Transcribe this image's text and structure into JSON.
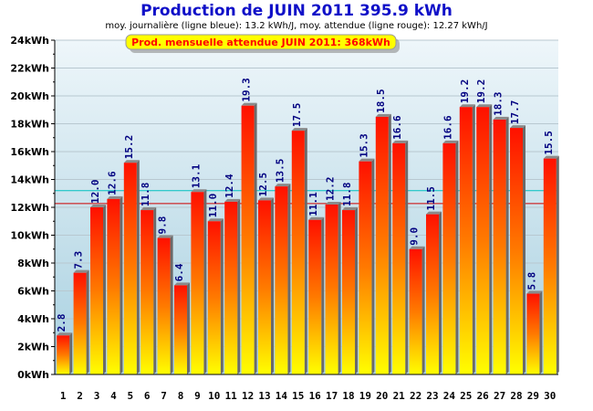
{
  "chart_data": {
    "type": "bar",
    "title": "Production de JUIN 2011  395.9 kWh",
    "subtitle": "moy. journalière (ligne bleue): 13.2 kWh/J,  moy. attendue (ligne rouge): 12.27 kWh/J",
    "annotation": "Prod. mensuelle attendue JUIN 2011: 368kWh",
    "categories": [
      "1",
      "2",
      "3",
      "4",
      "5",
      "6",
      "7",
      "8",
      "9",
      "10",
      "11",
      "12",
      "13",
      "14",
      "15",
      "16",
      "17",
      "18",
      "19",
      "20",
      "21",
      "22",
      "23",
      "24",
      "25",
      "26",
      "27",
      "28",
      "29",
      "30"
    ],
    "values": [
      2.8,
      7.3,
      12.0,
      12.6,
      15.2,
      11.8,
      9.8,
      6.4,
      13.1,
      11.0,
      12.4,
      19.3,
      12.5,
      13.5,
      17.5,
      11.1,
      12.2,
      11.8,
      15.3,
      18.5,
      16.6,
      9.0,
      11.5,
      16.6,
      19.2,
      19.2,
      18.3,
      17.7,
      5.8,
      15.5
    ],
    "value_labels": [
      "2.8",
      "7.3",
      "12.0",
      "12.6",
      "15.2",
      "11.8",
      "9.8",
      "6.4",
      "13.1",
      "11.0",
      "12.4",
      "19.3",
      "12.5",
      "13.5",
      "17.5",
      "11.1",
      "12.2",
      "11.8",
      "15.3",
      "18.5",
      "16.6",
      "9.0",
      "11.5",
      "16.6",
      "19.2",
      "19.2",
      "18.3",
      "17.7",
      "5.8",
      "15.5"
    ],
    "yticks": [
      0,
      2,
      4,
      6,
      8,
      10,
      12,
      14,
      16,
      18,
      20,
      22,
      24
    ],
    "ytick_labels": [
      "0kWh",
      "2kWh",
      "4kWh",
      "6kWh",
      "8kWh",
      "10kWh",
      "12kWh",
      "14kWh",
      "16kWh",
      "18kWh",
      "20kWh",
      "22kWh",
      "24kWh"
    ],
    "ylim": [
      0,
      24
    ],
    "grid": true,
    "reference_lines": [
      {
        "value": 13.2,
        "color": "#00c0c0"
      },
      {
        "value": 12.27,
        "color": "#cc0000"
      }
    ],
    "colors": {
      "title": "#1010c8",
      "bar_top": "#ff0000",
      "bar_bottom": "#ffff00",
      "value_label": "#000080",
      "annotation_box": "#ffff00",
      "annotation_text": "#ff0000"
    }
  }
}
